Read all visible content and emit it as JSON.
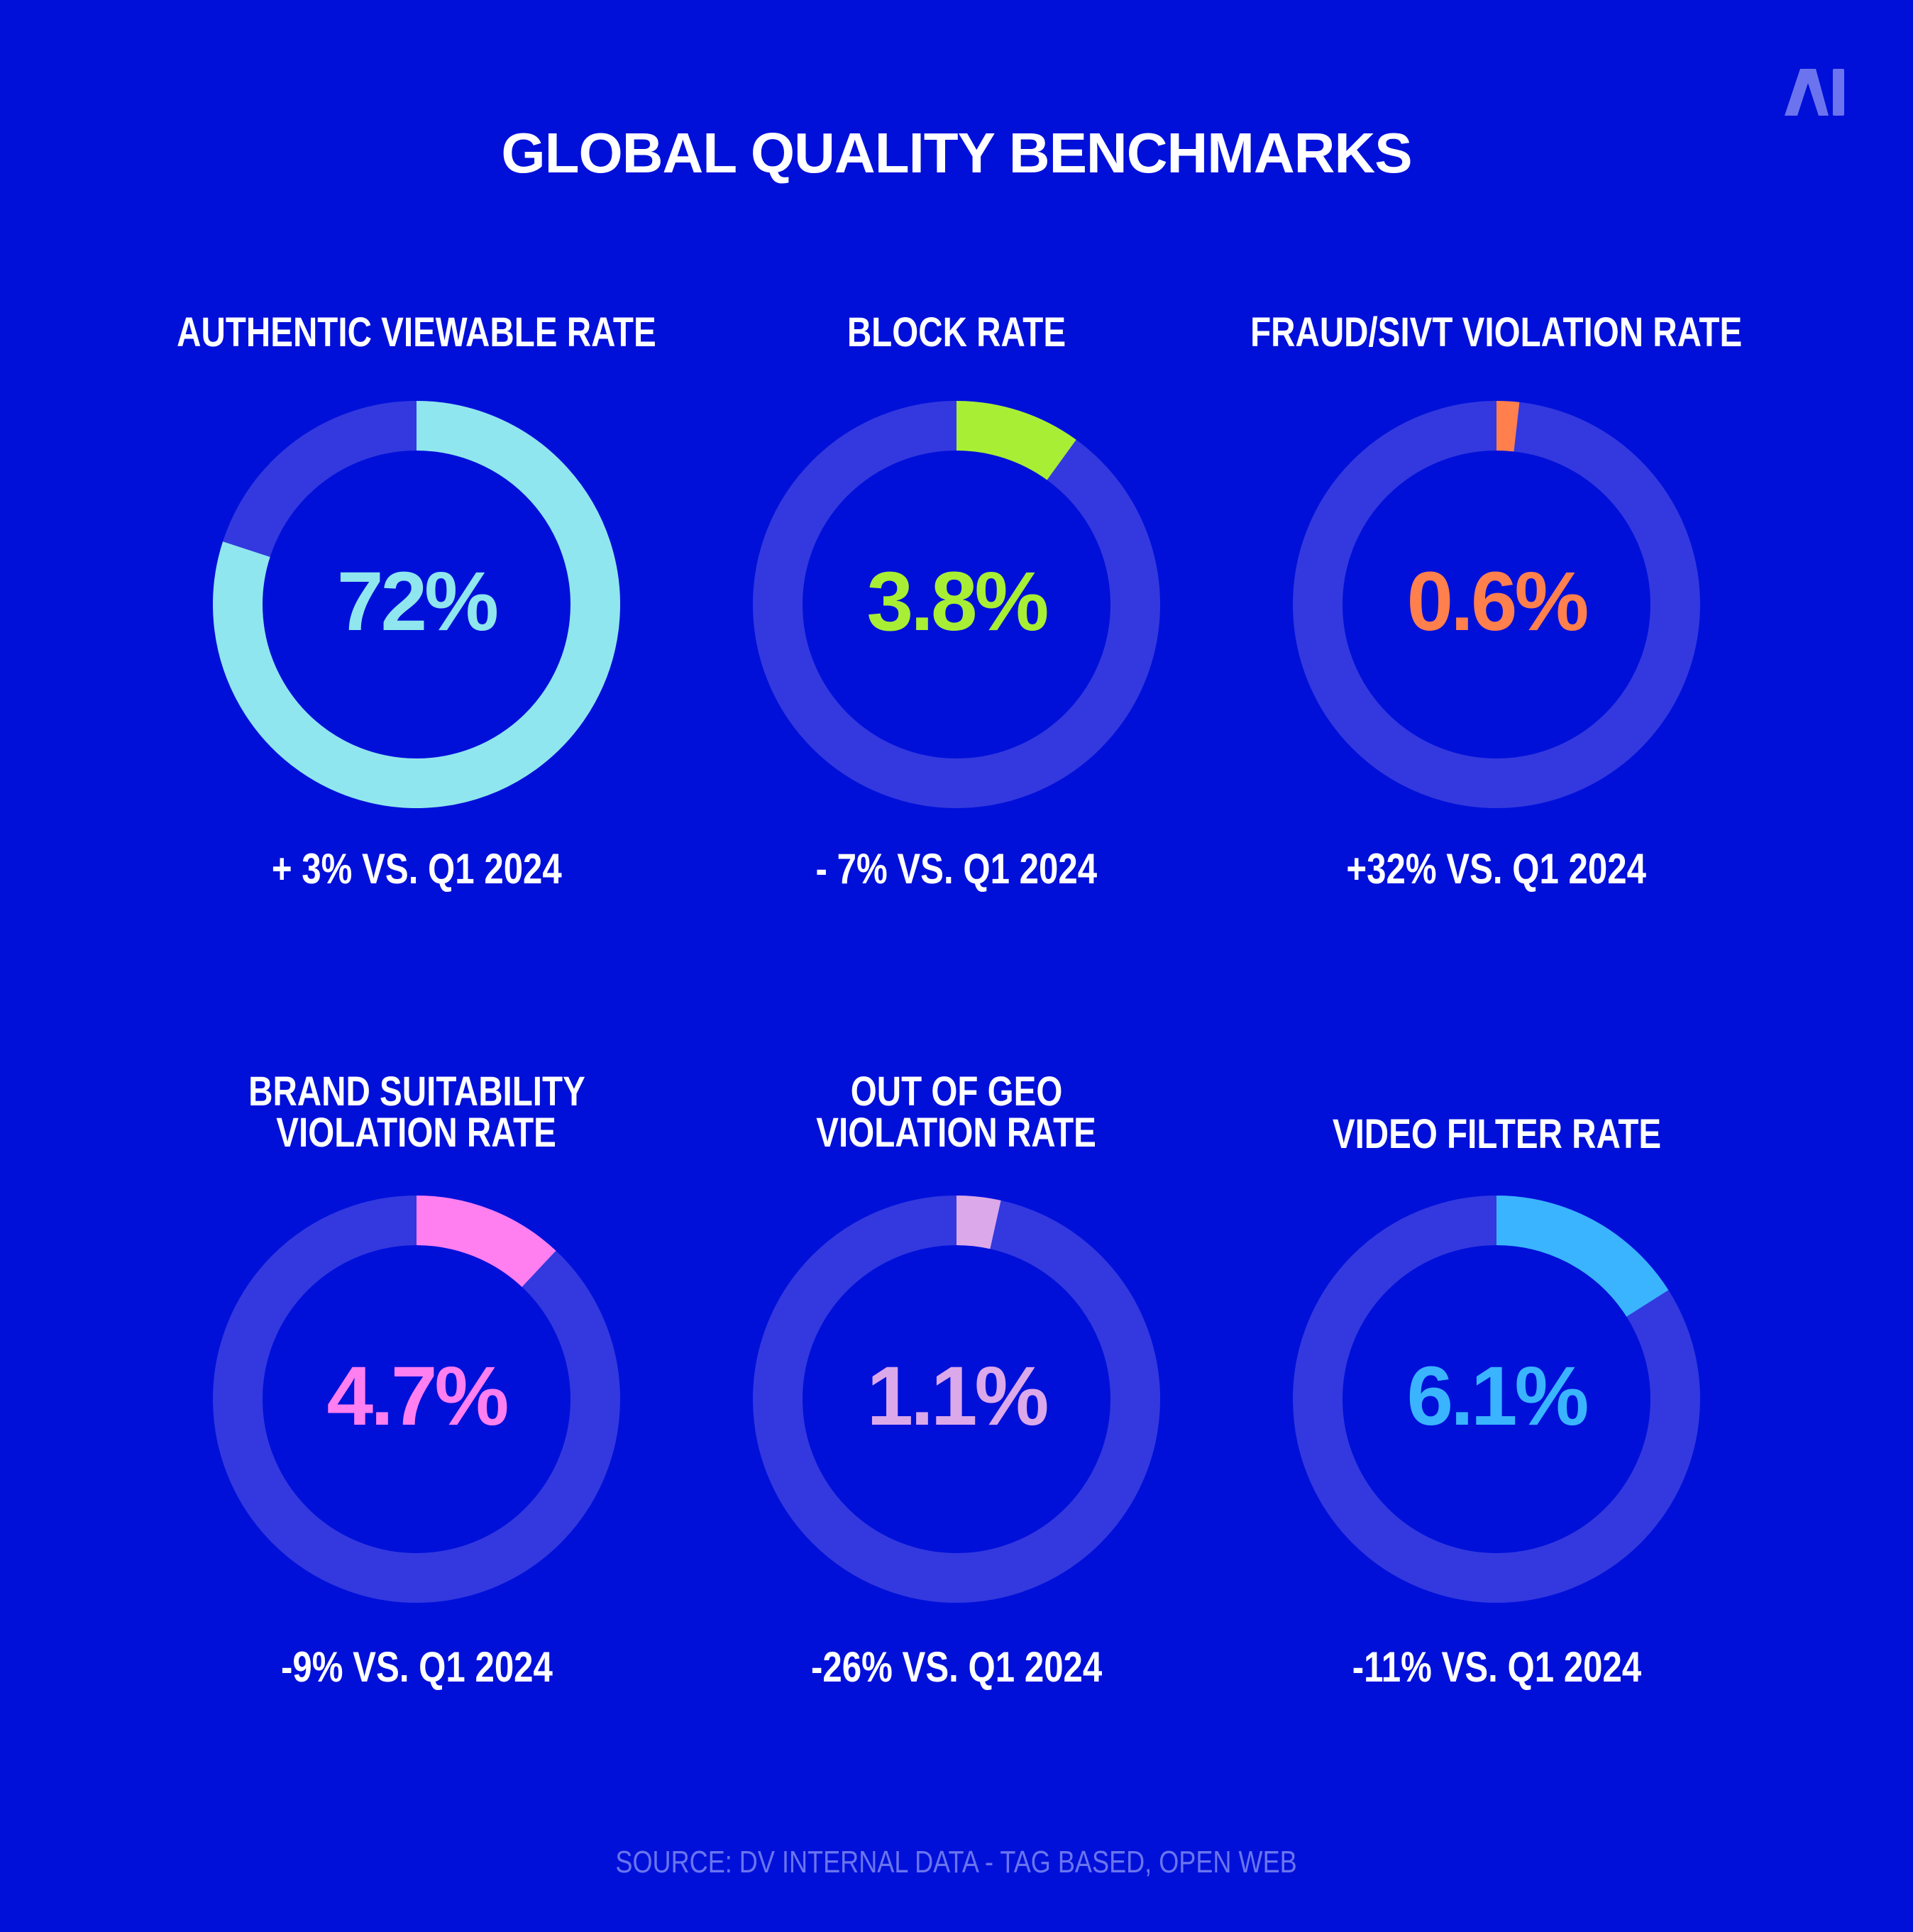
{
  "logo_text": "AI",
  "chart_data": {
    "type": "pie",
    "title": "GLOBAL QUALITY BENCHMARKS",
    "source": "SOURCE: DV INTERNAL DATA - TAG BASED, OPEN WEB",
    "track_color": "#3339df",
    "metrics": [
      {
        "label": [
          "AUTHENTIC VIEWABLE RATE"
        ],
        "value": "72%",
        "value_num": 72,
        "arc_fraction": 0.8,
        "color": "#8fe6ee",
        "comparison": "+ 3% VS. Q1 2024"
      },
      {
        "label": [
          "BLOCK RATE"
        ],
        "value": "3.8%",
        "value_num": 3.8,
        "arc_fraction": 0.1,
        "color": "#a8ee34",
        "comparison": "- 7% VS. Q1 2024"
      },
      {
        "label": [
          "FRAUD/SIVT VIOLATION RATE"
        ],
        "value": "0.6%",
        "value_num": 0.6,
        "arc_fraction": 0.018,
        "color": "#ff7f4d",
        "comparison": "+32% VS. Q1 2024"
      },
      {
        "label": [
          "BRAND SUITABILITY",
          "VIOLATION RATE"
        ],
        "value": "4.7%",
        "value_num": 4.7,
        "arc_fraction": 0.12,
        "color": "#ff7ef0",
        "comparison": "-9% VS. Q1 2024"
      },
      {
        "label": [
          "OUT OF GEO",
          "VIOLATION RATE"
        ],
        "value": "1.1%",
        "value_num": 1.1,
        "arc_fraction": 0.035,
        "color": "#dba8ea",
        "comparison": "-26% VS. Q1 2024"
      },
      {
        "label": [
          "VIDEO FILTER RATE"
        ],
        "value": "6.1%",
        "value_num": 6.1,
        "arc_fraction": 0.16,
        "color": "#3ab4ff",
        "comparison": "-11% VS. Q1 2024"
      }
    ]
  }
}
